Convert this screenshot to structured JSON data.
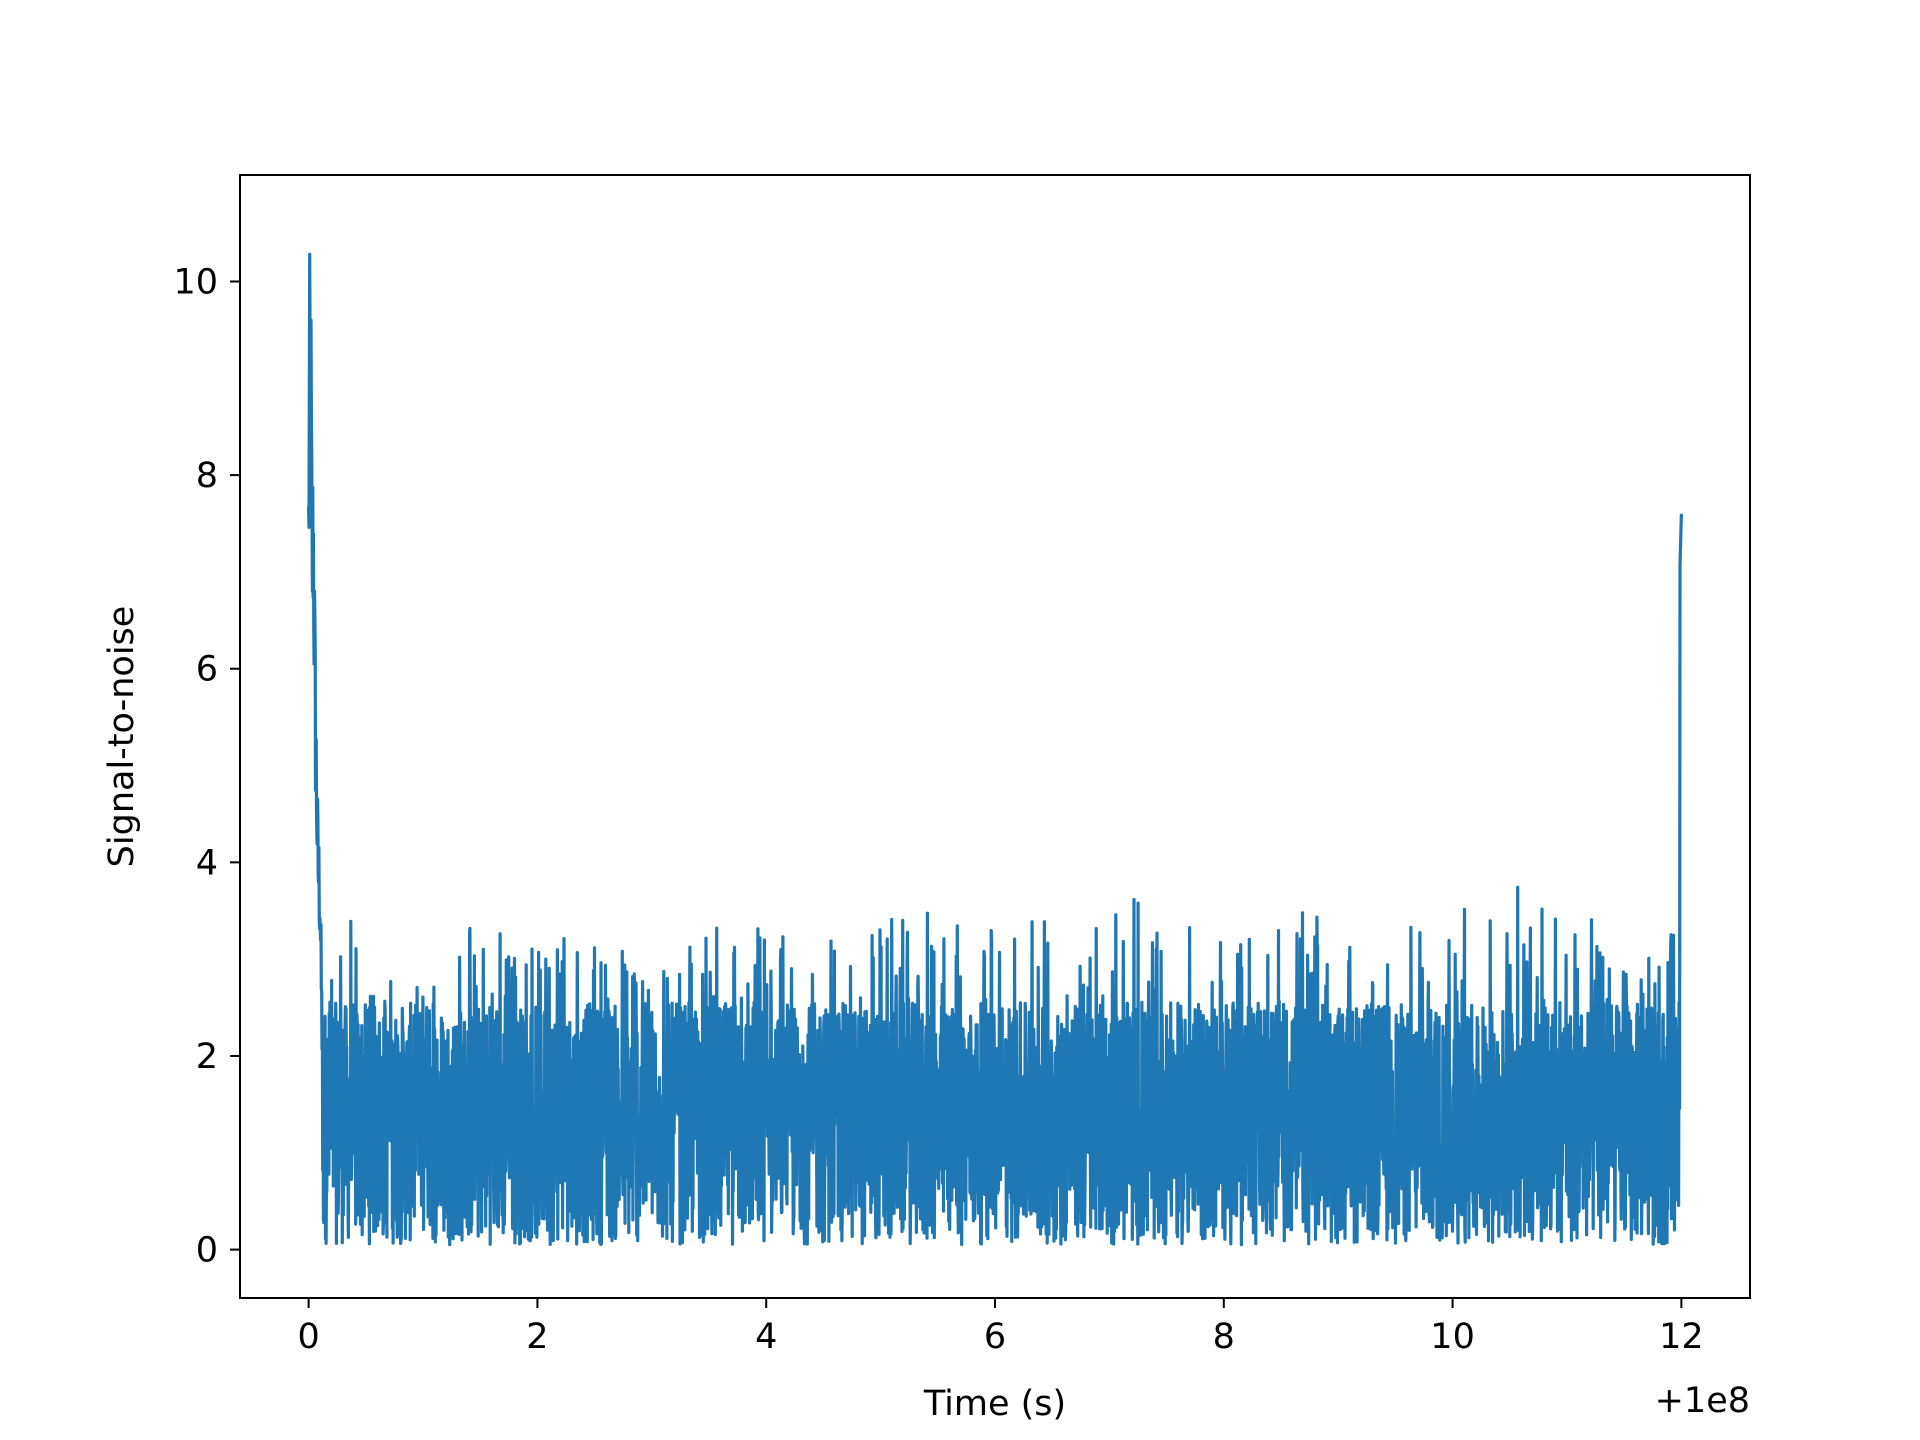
{
  "chart_data": {
    "type": "line",
    "title": "",
    "xlabel": "Time (s)",
    "ylabel": "Signal-to-noise",
    "x_offset_label": "+1e8",
    "xlim": [
      -0.6,
      12.6
    ],
    "ylim": [
      -0.5,
      11.1
    ],
    "xticks": [
      0,
      2,
      4,
      6,
      8,
      10,
      12
    ],
    "yticks": [
      0,
      2,
      4,
      6,
      8,
      10
    ],
    "grid": false,
    "legend": "none",
    "series_color": "#1f77b4",
    "series": [
      {
        "x_start": 0.0,
        "x_end": 12.0,
        "noise_floor_min": 0.05,
        "noise_typical_max": 2.5,
        "values_envelope": [
          [
            0.0,
            8.4
          ],
          [
            0.01,
            10.5
          ],
          [
            0.02,
            10.1
          ],
          [
            0.03,
            8.0
          ],
          [
            0.04,
            8.5
          ],
          [
            0.06,
            6.1
          ],
          [
            0.08,
            4.6
          ],
          [
            0.1,
            4.1
          ],
          [
            0.12,
            2.3
          ],
          [
            0.15,
            3.6
          ],
          [
            0.2,
            3.0
          ],
          [
            0.3,
            3.8
          ],
          [
            0.4,
            3.4
          ],
          [
            0.45,
            4.2
          ],
          [
            0.5,
            2.9
          ],
          [
            1.0,
            2.7
          ],
          [
            1.3,
            3.4
          ],
          [
            2.3,
            3.3
          ],
          [
            2.95,
            3.1
          ],
          [
            3.05,
            3.1
          ],
          [
            3.7,
            3.4
          ],
          [
            4.4,
            3.3
          ],
          [
            5.2,
            3.5
          ],
          [
            6.6,
            3.4
          ],
          [
            6.9,
            3.6
          ],
          [
            7.15,
            3.7
          ],
          [
            7.5,
            3.6
          ],
          [
            7.7,
            3.5
          ],
          [
            8.4,
            3.6
          ],
          [
            9.3,
            3.3
          ],
          [
            9.7,
            3.4
          ],
          [
            10.85,
            3.9
          ],
          [
            11.3,
            3.3
          ],
          [
            11.9,
            3.0
          ],
          [
            12.0,
            7.6
          ]
        ]
      }
    ]
  }
}
